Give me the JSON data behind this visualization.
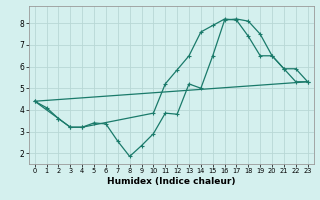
{
  "xlabel": "Humidex (Indice chaleur)",
  "bg_color": "#d4f0ee",
  "grid_color": "#b8d8d5",
  "line_color": "#1a7a6a",
  "xlim": [
    -0.5,
    23.5
  ],
  "ylim": [
    1.5,
    8.8
  ],
  "xticks": [
    0,
    1,
    2,
    3,
    4,
    5,
    6,
    7,
    8,
    9,
    10,
    11,
    12,
    13,
    14,
    15,
    16,
    17,
    18,
    19,
    20,
    21,
    22,
    23
  ],
  "yticks": [
    2,
    3,
    4,
    5,
    6,
    7,
    8
  ],
  "series": [
    {
      "x": [
        0,
        23
      ],
      "y": [
        4.4,
        5.3
      ],
      "has_markers": false
    },
    {
      "x": [
        0,
        1,
        2,
        3,
        4,
        5,
        6,
        7,
        8,
        9,
        10,
        11,
        12,
        13,
        14,
        15,
        16,
        17,
        18,
        19,
        20,
        21,
        22,
        23
      ],
      "y": [
        4.4,
        4.1,
        3.6,
        3.2,
        3.2,
        3.4,
        3.35,
        2.55,
        1.85,
        2.35,
        2.9,
        3.85,
        3.8,
        5.2,
        5.0,
        6.5,
        8.15,
        8.2,
        8.1,
        7.5,
        6.5,
        5.9,
        5.3,
        5.3
      ],
      "has_markers": true
    },
    {
      "x": [
        0,
        2,
        3,
        4,
        10,
        11,
        12,
        13,
        14,
        15,
        16,
        17,
        18,
        19,
        20,
        21,
        22,
        23
      ],
      "y": [
        4.4,
        3.6,
        3.2,
        3.2,
        3.85,
        5.2,
        5.85,
        6.5,
        7.6,
        7.9,
        8.2,
        8.15,
        7.4,
        6.5,
        6.5,
        5.9,
        5.9,
        5.3
      ],
      "has_markers": true
    }
  ]
}
